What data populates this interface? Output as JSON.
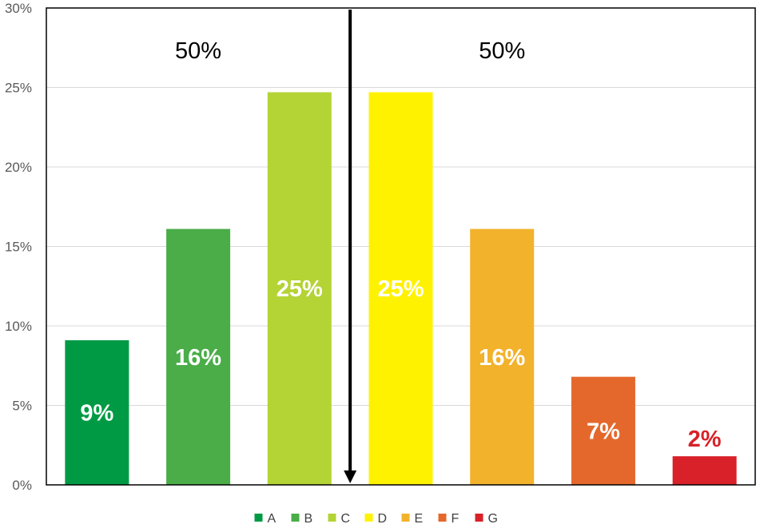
{
  "chart_data": {
    "type": "bar",
    "categories": [
      "A",
      "B",
      "C",
      "D",
      "E",
      "F",
      "G"
    ],
    "values": [
      9.1,
      16.1,
      24.7,
      24.7,
      16.1,
      6.8,
      1.8
    ],
    "data_labels": [
      "9%",
      "16%",
      "25%",
      "25%",
      "16%",
      "7%",
      "2%"
    ],
    "colors": [
      "#009a44",
      "#4aad48",
      "#b4d335",
      "#fff200",
      "#f2b22c",
      "#e4682c",
      "#d82128"
    ],
    "label_colors": [
      "#ffffff",
      "#ffffff",
      "#ffffff",
      "#ffffff",
      "#ffffff",
      "#ffffff",
      "#d82128"
    ],
    "y_ticks": [
      "0%",
      "5%",
      "10%",
      "15%",
      "20%",
      "25%",
      "30%"
    ],
    "ylim": [
      0,
      30
    ],
    "grid": true,
    "legend": {
      "position": "bottom",
      "entries": [
        "A",
        "B",
        "C",
        "D",
        "E",
        "F",
        "G"
      ]
    },
    "annotations": {
      "left_share": "50%",
      "right_share": "50%",
      "divider": "down-arrow between C and D"
    },
    "title": "",
    "xlabel": "",
    "ylabel": ""
  }
}
